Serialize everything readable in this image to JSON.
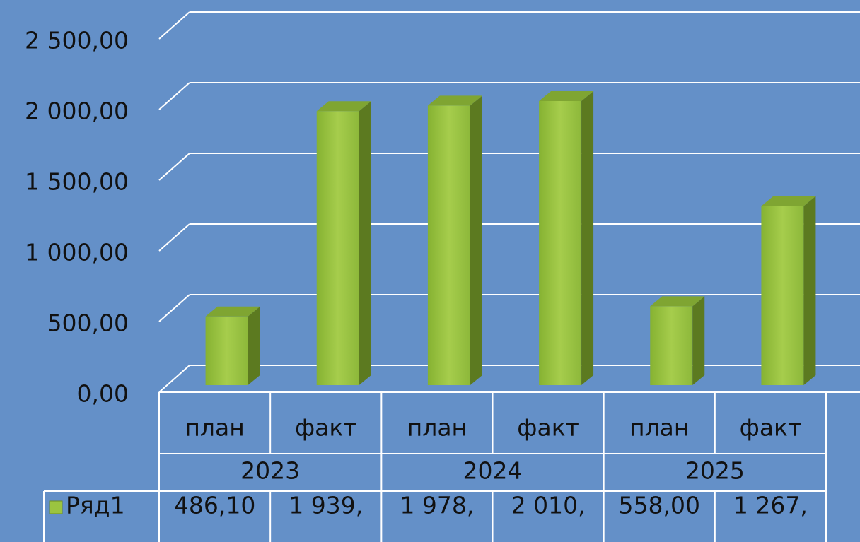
{
  "chart_data": {
    "type": "bar3d",
    "categories": [
      "план",
      "факт",
      "план",
      "факт",
      "план",
      "факт"
    ],
    "groups": [
      "2023",
      "2024",
      "2025"
    ],
    "series": [
      {
        "name": "Ряд1",
        "color": "#9bc440",
        "values": [
          486.1,
          1939,
          1978,
          2010,
          558,
          1267
        ],
        "value_labels": [
          "486,10",
          "1 939,",
          "1 978,",
          "2 010,",
          "558,00",
          "1 267,"
        ]
      }
    ],
    "ylim": [
      0,
      2500
    ],
    "yticks": [
      {
        "value": 0,
        "label": "0,00"
      },
      {
        "value": 500,
        "label": "500,00"
      },
      {
        "value": 1000,
        "label": "1 000,00"
      },
      {
        "value": 1500,
        "label": "1 500,00"
      },
      {
        "value": 2000,
        "label": "2 000,00"
      },
      {
        "value": 2500,
        "label": "2 500,00"
      }
    ],
    "grid": true,
    "data_table": true
  }
}
